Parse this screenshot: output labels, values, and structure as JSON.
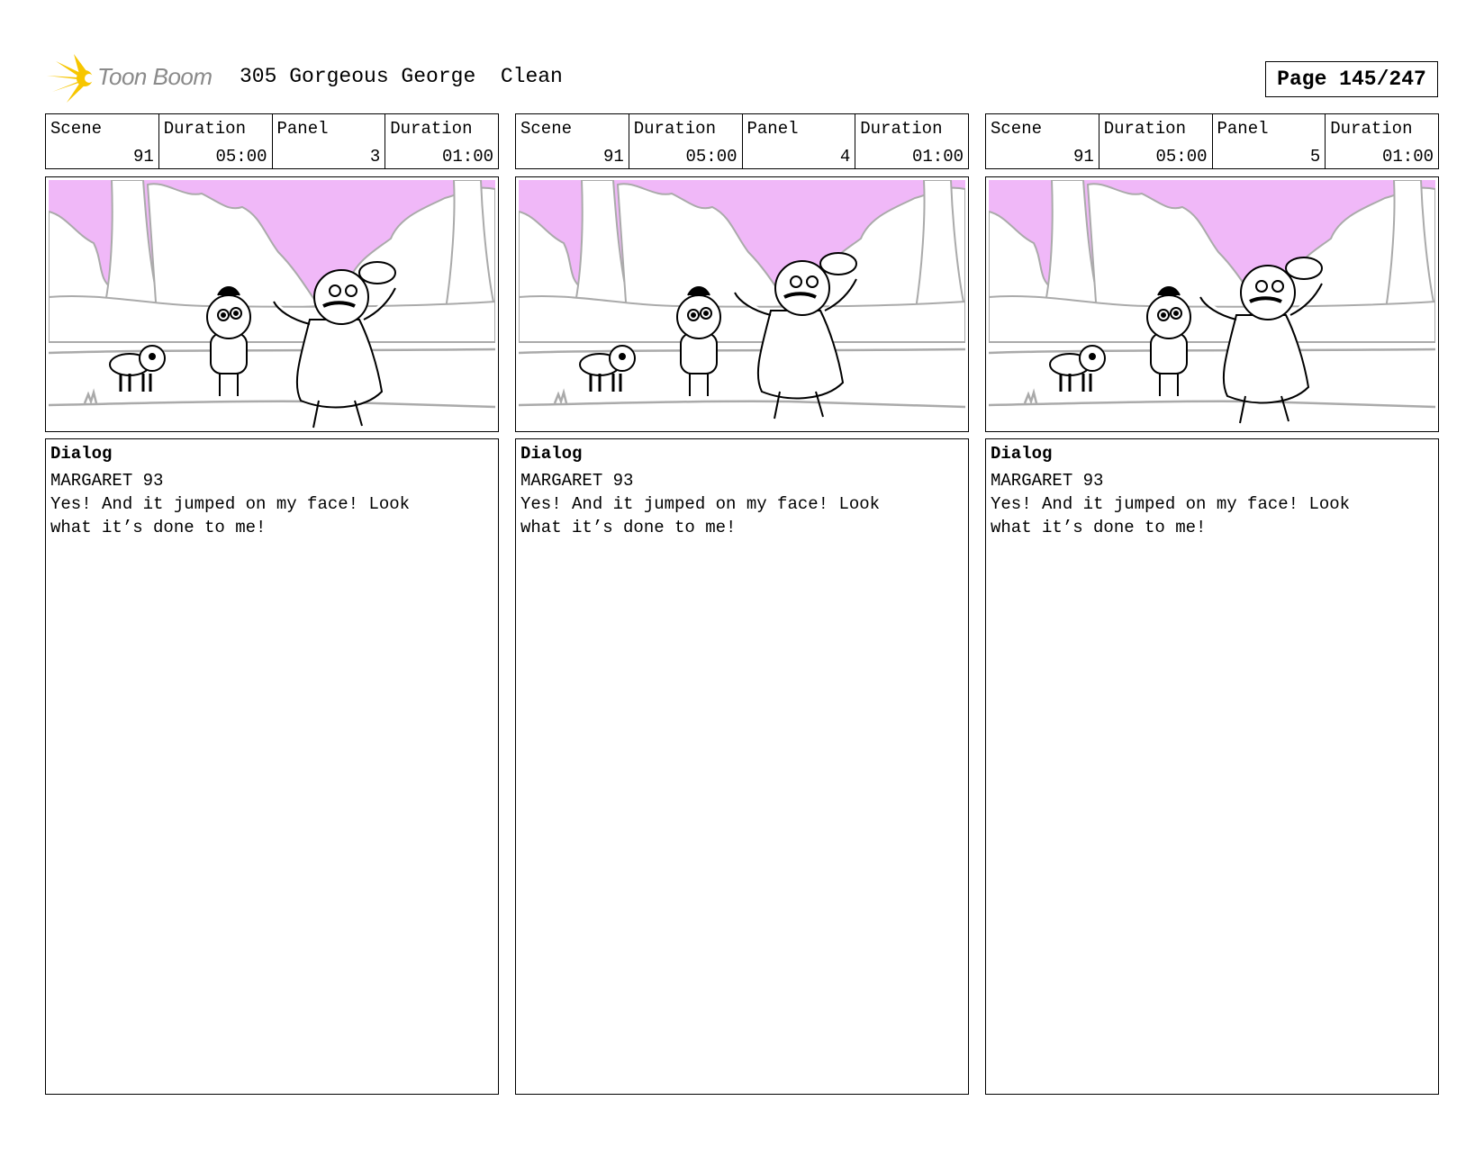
{
  "header": {
    "logo_text": "Toon Boom",
    "title": "305 Gorgeous George  Clean",
    "page_label": "Page 145/247"
  },
  "colors": {
    "sky": "#f0b8f8",
    "logo_star": "#f7c600",
    "lines": "#b0b0b0"
  },
  "panels": [
    {
      "scene_label": "Scene",
      "scene": "91",
      "scene_duration_label": "Duration",
      "scene_duration": "05:00",
      "panel_label": "Panel",
      "panel": "3",
      "panel_duration_label": "Duration",
      "panel_duration": "01:00",
      "dialog_label": "Dialog",
      "speaker": "MARGARET 93",
      "line1": "Yes! And it jumped on my face! Look",
      "line2": "what it’s done to me!"
    },
    {
      "scene_label": "Scene",
      "scene": "91",
      "scene_duration_label": "Duration",
      "scene_duration": "05:00",
      "panel_label": "Panel",
      "panel": "4",
      "panel_duration_label": "Duration",
      "panel_duration": "01:00",
      "dialog_label": "Dialog",
      "speaker": "MARGARET 93",
      "line1": "Yes! And it jumped on my face! Look",
      "line2": "what it’s done to me!"
    },
    {
      "scene_label": "Scene",
      "scene": "91",
      "scene_duration_label": "Duration",
      "scene_duration": "05:00",
      "panel_label": "Panel",
      "panel": "5",
      "panel_duration_label": "Duration",
      "panel_duration": "01:00",
      "dialog_label": "Dialog",
      "speaker": "MARGARET 93",
      "line1": "Yes! And it jumped on my face! Look",
      "line2": "what it’s done to me!"
    }
  ]
}
